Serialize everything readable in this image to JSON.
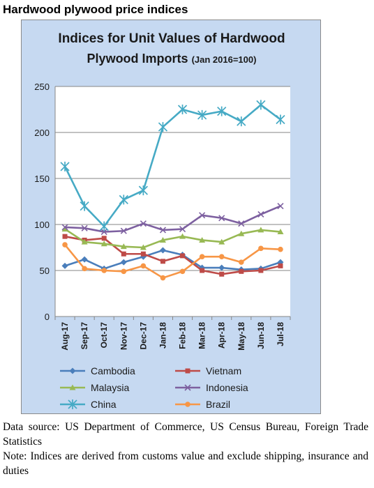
{
  "heading": "Hardwood plywood price indices",
  "chart_data": {
    "type": "line",
    "title_line1": "Indices for Unit Values of Hardwood",
    "title_line2": "Plywood Imports",
    "title_sub": "(Jan 2016=100)",
    "categories": [
      "Aug-17",
      "Sep-17",
      "Oct-17",
      "Nov-17",
      "Dec-17",
      "Jan-18",
      "Feb-18",
      "Mar-18",
      "Apr-18",
      "May-18",
      "Jun-18",
      "Jul-18"
    ],
    "y_ticks": [
      "0",
      "50",
      "100",
      "150",
      "200",
      "250"
    ],
    "ylim": [
      0,
      250
    ],
    "grid": true,
    "legend_position": "bottom",
    "series": [
      {
        "name": "Cambodia",
        "color": "#4a7ebb",
        "marker": "diamond",
        "values": [
          55,
          62,
          52,
          59,
          65,
          72,
          67,
          53,
          53,
          51,
          52,
          59
        ]
      },
      {
        "name": "Vietnam",
        "color": "#be4b48",
        "marker": "square",
        "values": [
          87,
          83,
          85,
          68,
          68,
          60,
          66,
          50,
          46,
          49,
          50,
          55
        ]
      },
      {
        "name": "Malaysia",
        "color": "#98b954",
        "marker": "triangle",
        "values": [
          95,
          81,
          79,
          76,
          75,
          83,
          87,
          83,
          81,
          90,
          94,
          92
        ]
      },
      {
        "name": "Indonesia",
        "color": "#7d60a0",
        "marker": "x",
        "values": [
          97,
          96,
          92,
          93,
          101,
          94,
          95,
          110,
          107,
          101,
          111,
          120
        ]
      },
      {
        "name": "China",
        "color": "#46aac5",
        "marker": "star",
        "values": [
          163,
          120,
          98,
          127,
          137,
          206,
          225,
          219,
          223,
          212,
          230,
          214
        ]
      },
      {
        "name": "Brazil",
        "color": "#f79646",
        "marker": "circle",
        "values": [
          78,
          52,
          50,
          49,
          55,
          42,
          49,
          65,
          65,
          59,
          74,
          73
        ]
      }
    ]
  },
  "footer": {
    "source": "Data source: US Department of Commerce, US Census Bureau, Foreign Trade Statistics",
    "note": "Note: Indices are derived from customs value and exclude shipping, insurance and duties"
  }
}
